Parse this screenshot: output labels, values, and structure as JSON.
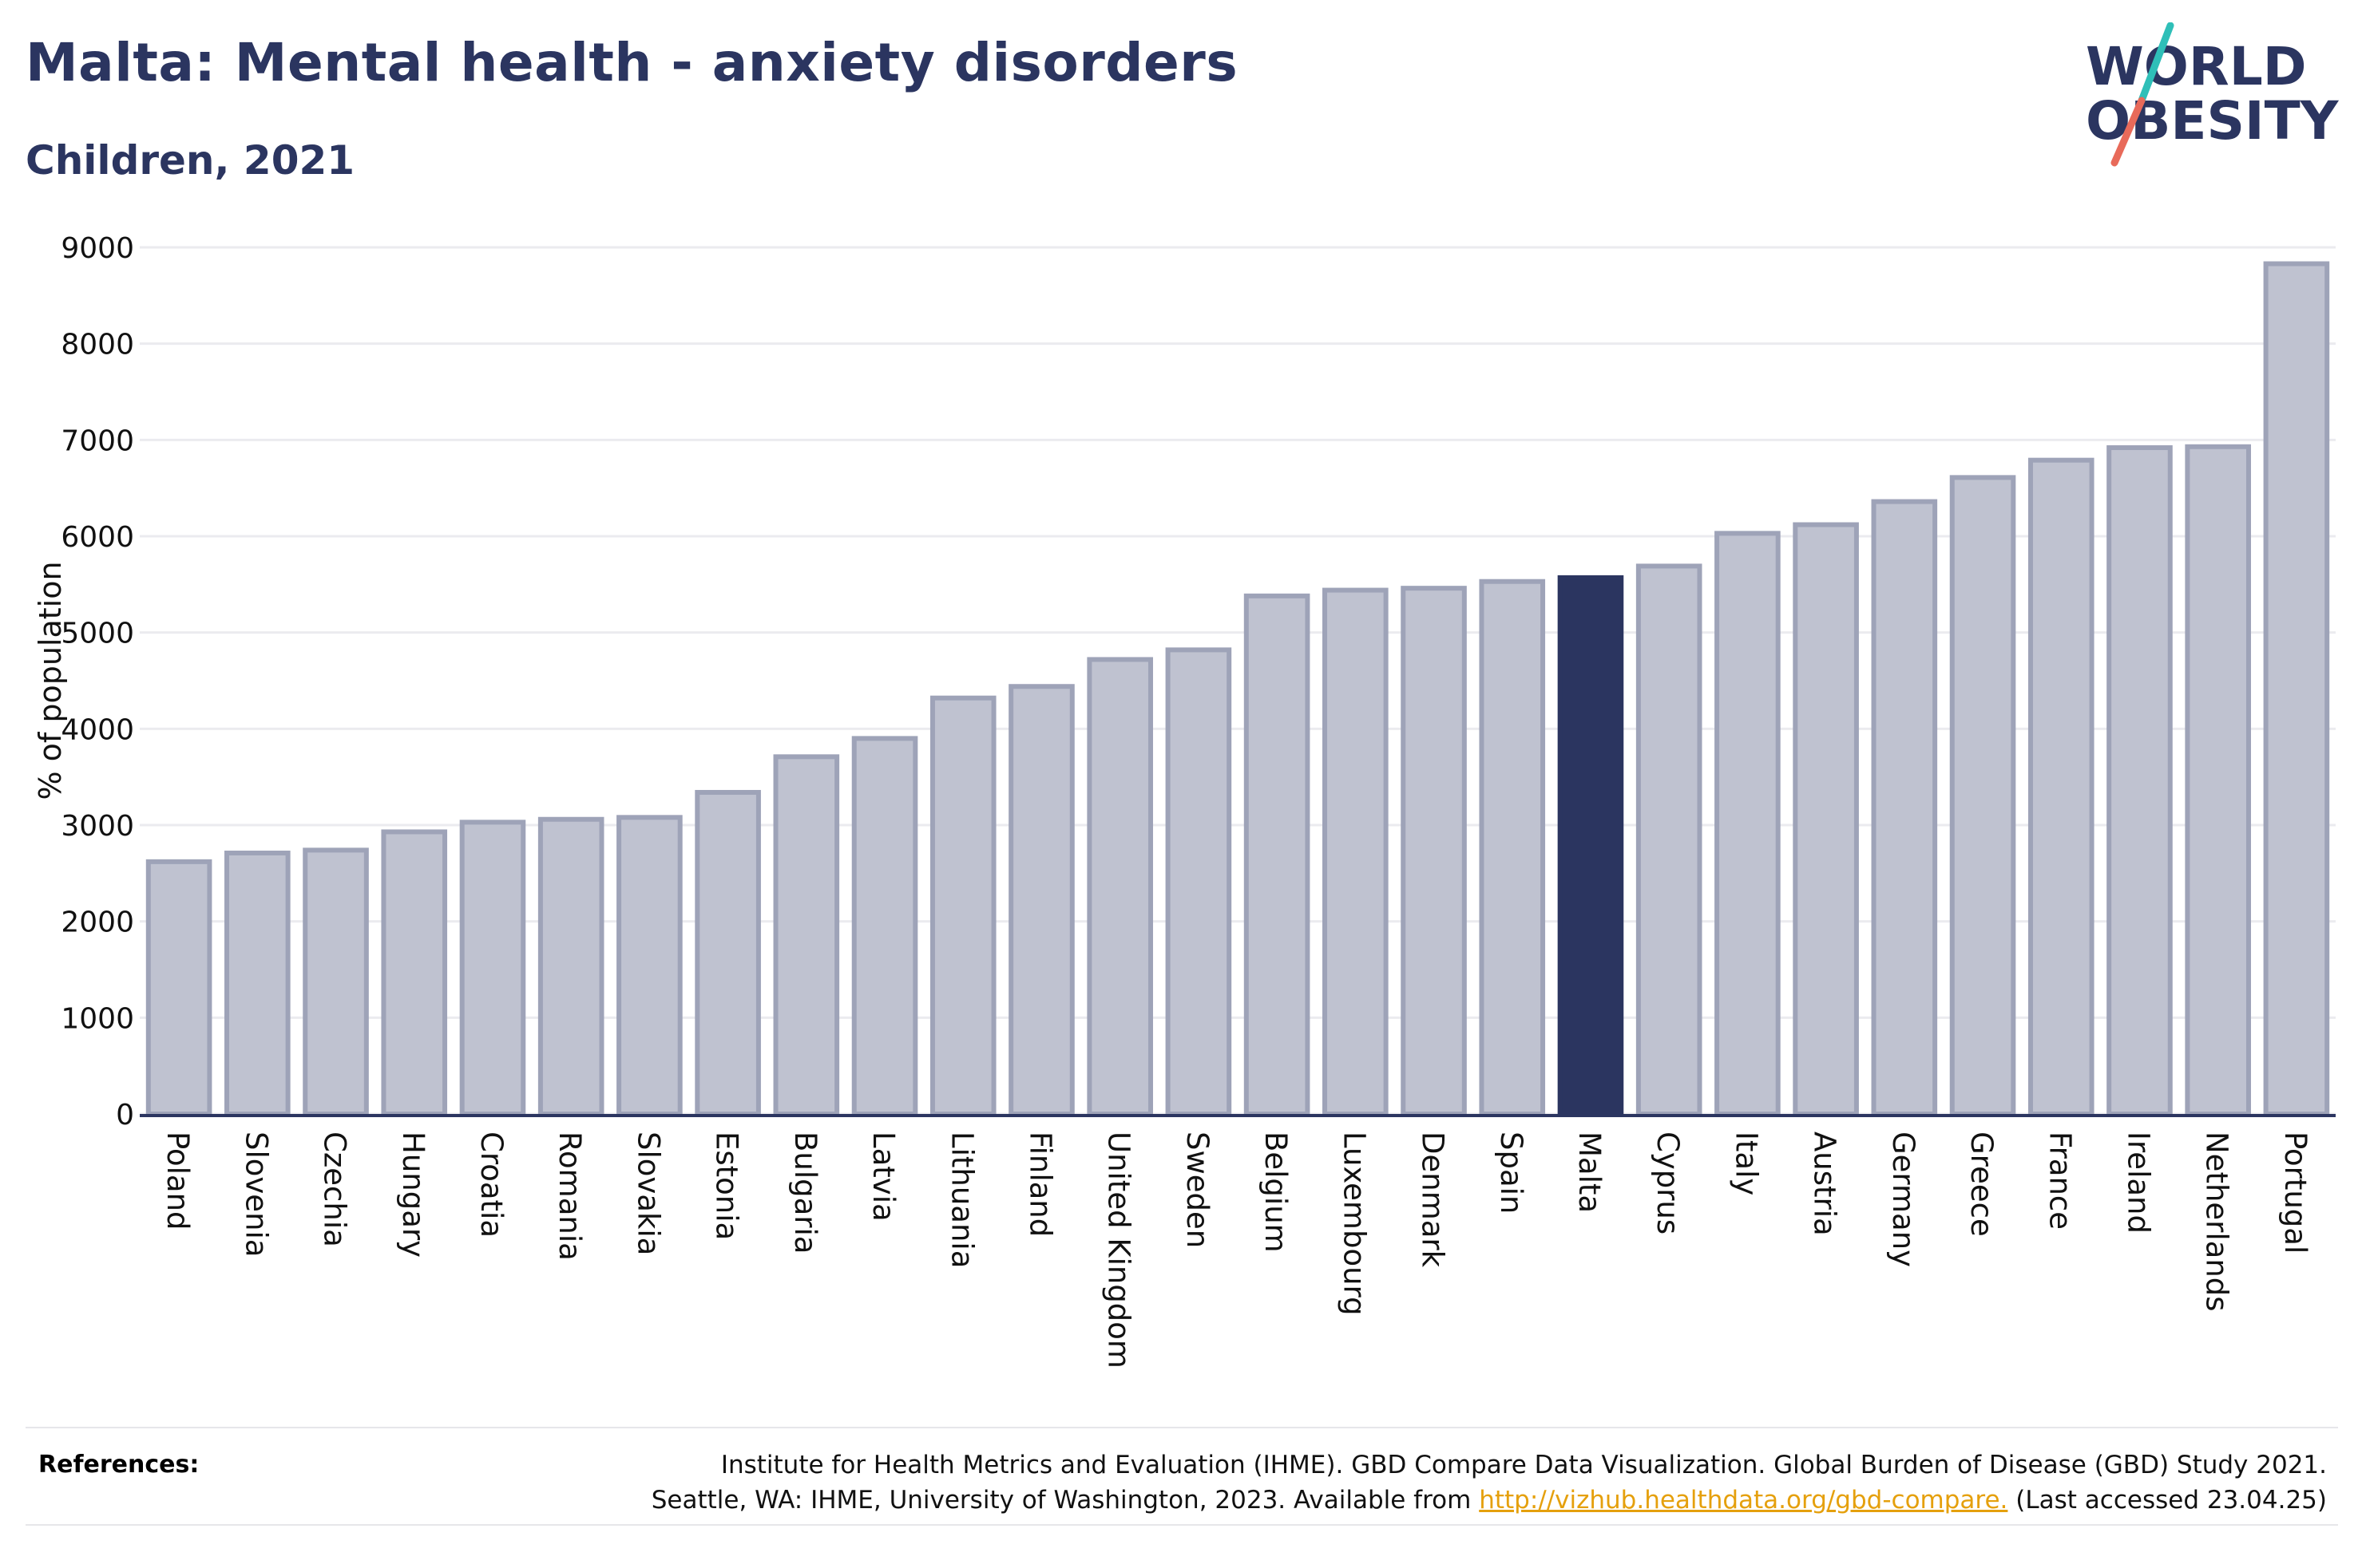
{
  "header": {
    "title": "Malta: Mental health - anxiety disorders",
    "subtitle": "Children, 2021"
  },
  "logo": {
    "line1": "WORLD",
    "line2": "OBESITY",
    "text_color": "#2b3560",
    "slash_colors": [
      "#2fbfb8",
      "#e86a5a"
    ]
  },
  "chart_data": {
    "type": "bar",
    "title": "Malta: Mental health - anxiety disorders",
    "subtitle": "Children, 2021",
    "xlabel": "",
    "ylabel": "% of population",
    "ylim": [
      0,
      9000
    ],
    "yticks": [
      0,
      1000,
      2000,
      3000,
      4000,
      5000,
      6000,
      7000,
      8000,
      9000
    ],
    "grid": true,
    "highlight": "Malta",
    "colors": {
      "bar": "#bfc2d0",
      "bar_border": "#9ea3b8",
      "highlight": "#2b3560",
      "grid": "#ebebef",
      "axis": "#2b3560"
    },
    "categories": [
      "Poland",
      "Slovenia",
      "Czechia",
      "Hungary",
      "Croatia",
      "Romania",
      "Slovakia",
      "Estonia",
      "Bulgaria",
      "Latvia",
      "Lithuania",
      "Finland",
      "United Kingdom",
      "Sweden",
      "Belgium",
      "Luxembourg",
      "Denmark",
      "Spain",
      "Malta",
      "Cyprus",
      "Italy",
      "Austria",
      "Germany",
      "Greece",
      "France",
      "Ireland",
      "Netherlands",
      "Portugal"
    ],
    "values": [
      2620,
      2710,
      2740,
      2930,
      3030,
      3060,
      3080,
      3340,
      3710,
      3900,
      4320,
      4440,
      4720,
      4820,
      5380,
      5440,
      5460,
      5530,
      5570,
      5690,
      6030,
      6120,
      6360,
      6610,
      6790,
      6920,
      6930,
      8830
    ]
  },
  "references": {
    "label": "References:",
    "line1": "Institute for Health Metrics and Evaluation (IHME). GBD Compare Data Visualization. Global Burden of Disease (GBD) Study 2021.",
    "line2_prefix": "Seattle, WA: IHME, University of Washington, 2023. Available from ",
    "link_text": "http://vizhub.healthdata.org/gbd-compare.",
    "line2_suffix": " (Last accessed 23.04.25)"
  }
}
